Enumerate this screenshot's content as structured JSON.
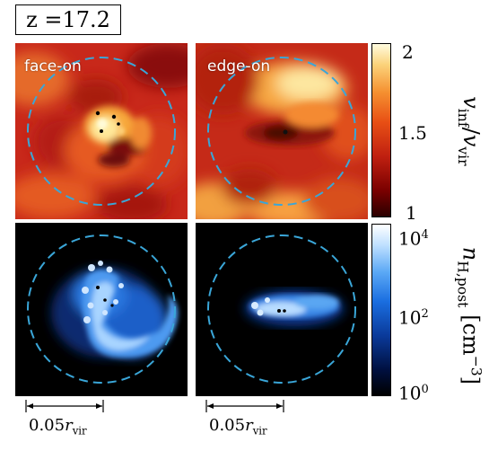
{
  "redshift_label": "z =17.2",
  "panels": {
    "top_left_label": "face-on",
    "top_right_label": "edge-on"
  },
  "colorbar_top": {
    "symbol": "v",
    "sub_inf": "inf",
    "sub_vir": "vir",
    "ticks": [
      "2",
      "1.5",
      "1"
    ],
    "colormap": [
      "#2a0000",
      "#7a0000",
      "#c02010",
      "#e85015",
      "#f59030",
      "#fbd27a",
      "#fffce0"
    ]
  },
  "colorbar_bottom": {
    "symbol": "n",
    "sub": "H,post",
    "unit": "[cm",
    "unit_exp": "−3",
    "unit_close": "]",
    "tick_mantissa": "10",
    "tick_exps": [
      "4",
      "2",
      "0"
    ],
    "colormap": [
      "#000000",
      "#001040",
      "#0a3a9a",
      "#1a6ee0",
      "#5aa8f5",
      "#bfe0ff",
      "#ffffff"
    ]
  },
  "scalebars": {
    "left": {
      "value": "0.05",
      "symbol": "r",
      "sub": "vir"
    },
    "right": {
      "value": "0.05",
      "symbol": "r",
      "sub": "vir"
    }
  },
  "colors": {
    "circle": "#3aa6d8",
    "black_bg": "#000000"
  }
}
